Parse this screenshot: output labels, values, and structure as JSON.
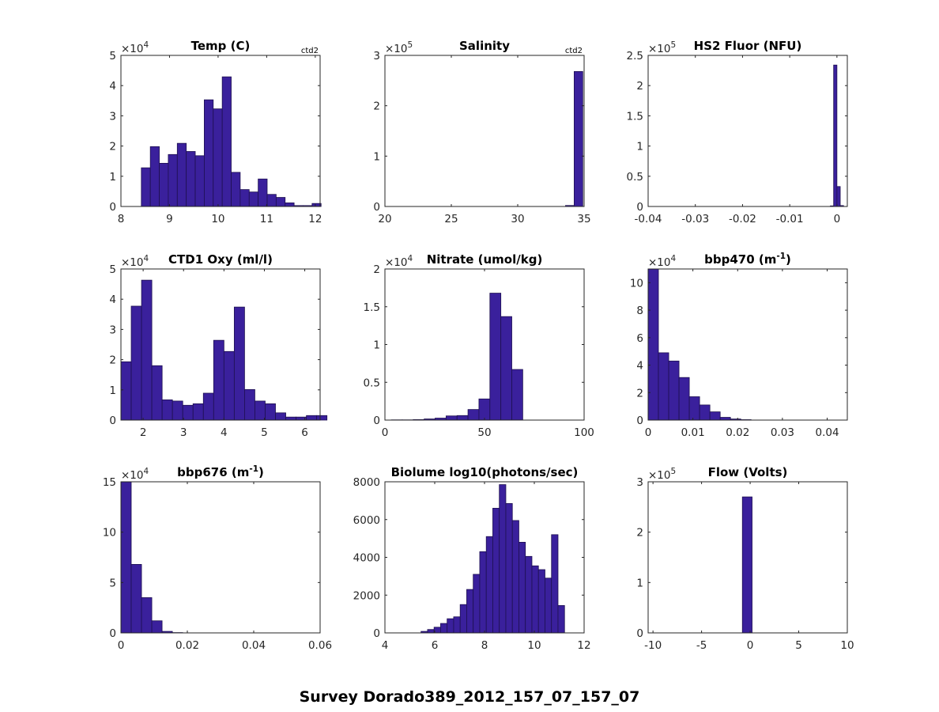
{
  "figure_title": "Survey Dorado389_2012_157_07_157_07",
  "colors": {
    "bar_fill": "#3a209c",
    "bar_edge": "#1e1050",
    "axis": "#262626"
  },
  "chart_data": [
    {
      "type": "bar",
      "title": "Temp (C)",
      "title_sup": "",
      "note": "ctd2",
      "exponent_base": "×10",
      "exponent": "4",
      "scale": 10000,
      "xlim": [
        8,
        12.1
      ],
      "ylim": [
        0,
        50000
      ],
      "xticks": [
        8,
        9,
        10,
        11,
        12
      ],
      "xtick_labels": [
        "8",
        "9",
        "10",
        "11",
        "12"
      ],
      "yticks": [
        0,
        10000,
        20000,
        30000,
        40000,
        50000
      ],
      "ytick_labels": [
        "0",
        "1",
        "2",
        "3",
        "4",
        "5"
      ],
      "bin_start": 8.42,
      "bin_width": 0.185,
      "values": [
        12800,
        19800,
        14300,
        17200,
        20900,
        18200,
        16800,
        35300,
        32300,
        42900,
        11300,
        5600,
        4800,
        9100,
        4000,
        3000,
        1200,
        300,
        300,
        1000
      ]
    },
    {
      "type": "bar",
      "title": "Salinity",
      "title_sup": "",
      "note": "ctd2",
      "exponent_base": "×10",
      "exponent": "5",
      "scale": 100000,
      "xlim": [
        20,
        35
      ],
      "ylim": [
        0,
        300000
      ],
      "xticks": [
        20,
        25,
        30,
        35
      ],
      "xtick_labels": [
        "20",
        "25",
        "30",
        "35"
      ],
      "yticks": [
        0,
        100000,
        200000,
        300000
      ],
      "ytick_labels": [
        "0",
        "1",
        "2",
        "3"
      ],
      "bin_start": 33.6,
      "bin_width": 0.65,
      "values": [
        2000,
        268000
      ]
    },
    {
      "type": "bar",
      "title": "HS2 Fluor (NFU)",
      "title_sup": "",
      "note": "",
      "exponent_base": "×10",
      "exponent": "5",
      "scale": 100000,
      "xlim": [
        -0.04,
        0.0022
      ],
      "ylim": [
        0,
        250000
      ],
      "xticks": [
        -0.04,
        -0.03,
        -0.02,
        -0.01,
        0
      ],
      "xtick_labels": [
        "-0.04",
        "-0.03",
        "-0.02",
        "-0.01",
        "0"
      ],
      "yticks": [
        0,
        50000,
        100000,
        150000,
        200000,
        250000
      ],
      "ytick_labels": [
        "0",
        "0.5",
        "1",
        "1.5",
        "2",
        "2.5"
      ],
      "bin_start": -0.0014,
      "bin_width": 0.0007,
      "values": [
        1000,
        234000,
        33000,
        1500
      ]
    },
    {
      "type": "bar",
      "title": "CTD1 Oxy (ml/l)",
      "title_sup": "",
      "note": "",
      "exponent_base": "×10",
      "exponent": "4",
      "scale": 10000,
      "xlim": [
        1.45,
        6.38
      ],
      "ylim": [
        0,
        50000
      ],
      "xticks": [
        2,
        3,
        4,
        5,
        6
      ],
      "xtick_labels": [
        "2",
        "3",
        "4",
        "5",
        "6"
      ],
      "yticks": [
        0,
        10000,
        20000,
        30000,
        40000,
        50000
      ],
      "ytick_labels": [
        "0",
        "1",
        "2",
        "3",
        "4",
        "5"
      ],
      "bin_start": 1.45,
      "bin_width": 0.255,
      "values": [
        19300,
        37700,
        46300,
        18000,
        6700,
        6300,
        4900,
        5400,
        8900,
        26400,
        22700,
        37400,
        10100,
        6300,
        5400,
        2400,
        1000,
        1000,
        1500,
        1500
      ]
    },
    {
      "type": "bar",
      "title": "Nitrate (umol/kg)",
      "title_sup": "",
      "note": "",
      "exponent_base": "×10",
      "exponent": "4",
      "scale": 10000,
      "xlim": [
        0,
        100
      ],
      "ylim": [
        0,
        20000
      ],
      "xticks": [
        0,
        50,
        100
      ],
      "xtick_labels": [
        "0",
        "50",
        "100"
      ],
      "yticks": [
        0,
        5000,
        10000,
        15000,
        20000
      ],
      "ytick_labels": [
        "0",
        "0.5",
        "1",
        "1.5",
        "2"
      ],
      "bin_start": 3.2,
      "bin_width": 5.5,
      "values": [
        30,
        30,
        60,
        150,
        260,
        550,
        600,
        1400,
        2800,
        16800,
        13700,
        6700
      ]
    },
    {
      "type": "bar",
      "title": "bbp470 (m",
      "title_sup": "-1",
      "note": "",
      "exponent_base": "×10",
      "exponent": "4",
      "scale": 10000,
      "xlim": [
        0,
        0.0445
      ],
      "ylim": [
        0,
        110000
      ],
      "xticks": [
        0,
        0.01,
        0.02,
        0.03,
        0.04
      ],
      "xtick_labels": [
        "0",
        "0.01",
        "0.02",
        "0.03",
        "0.04"
      ],
      "yticks": [
        0,
        20000,
        40000,
        60000,
        80000,
        100000
      ],
      "ytick_labels": [
        "0",
        "2",
        "4",
        "6",
        "8",
        "10"
      ],
      "bin_start": 0,
      "bin_width": 0.0023,
      "values": [
        110000,
        49000,
        43000,
        31000,
        17000,
        11000,
        6000,
        2000,
        800,
        300
      ]
    },
    {
      "type": "bar",
      "title": "bbp676 (m",
      "title_sup": "-1",
      "note": "",
      "exponent_base": "×10",
      "exponent": "4",
      "scale": 10000,
      "xlim": [
        0,
        0.06
      ],
      "ylim": [
        0,
        150000
      ],
      "xticks": [
        0,
        0.02,
        0.04,
        0.06
      ],
      "xtick_labels": [
        "0",
        "0.02",
        "0.04",
        "0.06"
      ],
      "yticks": [
        0,
        50000,
        100000,
        150000
      ],
      "ytick_labels": [
        "0",
        "5",
        "10",
        "15"
      ],
      "bin_start": 0,
      "bin_width": 0.0031,
      "values": [
        150000,
        68000,
        35000,
        12000,
        1500,
        300
      ]
    },
    {
      "type": "bar",
      "title": "Biolume log10(photons/sec)",
      "title_sup": "",
      "note": "",
      "exponent_base": "",
      "exponent": "",
      "scale": 1,
      "xlim": [
        4,
        12
      ],
      "ylim": [
        0,
        8000
      ],
      "xticks": [
        4,
        6,
        8,
        10,
        12
      ],
      "xtick_labels": [
        "4",
        "6",
        "8",
        "10",
        "12"
      ],
      "yticks": [
        0,
        2000,
        4000,
        6000,
        8000
      ],
      "ytick_labels": [
        "0",
        "2000",
        "4000",
        "6000",
        "8000"
      ],
      "bin_start": 5.45,
      "bin_width": 0.262,
      "values": [
        80,
        180,
        300,
        500,
        750,
        850,
        1500,
        2300,
        3100,
        4300,
        5100,
        6600,
        7850,
        6850,
        5950,
        4800,
        4050,
        3550,
        3350,
        2900,
        5200,
        1450
      ]
    },
    {
      "type": "bar",
      "title": "Flow (Volts)",
      "title_sup": "",
      "note": "",
      "exponent_base": "×10",
      "exponent": "5",
      "scale": 100000,
      "xlim": [
        -10.5,
        10
      ],
      "ylim": [
        0,
        300000
      ],
      "xticks": [
        -10,
        -5,
        0,
        5,
        10
      ],
      "xtick_labels": [
        "-10",
        "-5",
        "0",
        "5",
        "10"
      ],
      "yticks": [
        0,
        100000,
        200000,
        300000
      ],
      "ytick_labels": [
        "0",
        "1",
        "2",
        "3"
      ],
      "bin_start": -0.8,
      "bin_width": 1.0,
      "values": [
        270000
      ]
    }
  ]
}
